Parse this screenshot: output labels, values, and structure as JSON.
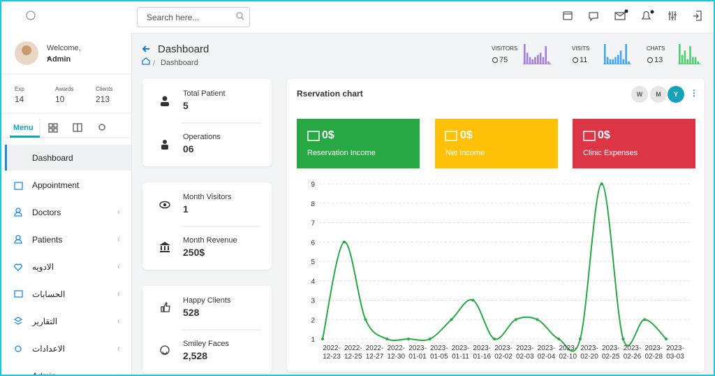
{
  "topbar": {
    "search_placeholder": "Search here..."
  },
  "profile": {
    "welcome": "Welcome,",
    "name": "Admin",
    "stats": [
      {
        "label": "Exp",
        "value": "14"
      },
      {
        "label": "Awards",
        "value": "10"
      },
      {
        "label": "Clients",
        "value": "213"
      }
    ]
  },
  "tabs": [
    "Menu"
  ],
  "menu": [
    "Dashboard",
    "Appointment",
    "Doctors",
    "Patients",
    "الادويه",
    "الحسابات",
    "التقارير",
    "الاعدادات",
    "Admin"
  ],
  "page": {
    "title": "Dashboard",
    "breadcrumb": "Dashboard"
  },
  "header_stats": [
    {
      "label": "VISITORS",
      "value": "75",
      "color": "#a17fe0",
      "bars": [
        9,
        5,
        3,
        2,
        3,
        4,
        5,
        3,
        8,
        1
      ]
    },
    {
      "label": "VISITS",
      "value": "11",
      "color": "#42a5f5",
      "bars": [
        9,
        3,
        2,
        2,
        3,
        4,
        6,
        2,
        9,
        1
      ]
    },
    {
      "label": "CHATS",
      "value": "13",
      "color": "#4cce6c",
      "bars": [
        9,
        4,
        6,
        2,
        8,
        3,
        3,
        1
      ]
    }
  ],
  "cards": [
    [
      {
        "label": "Total Patient",
        "value": "5"
      },
      {
        "label": "Operations",
        "value": "06"
      }
    ],
    [
      {
        "label": "Month Visitors",
        "value": "1"
      },
      {
        "label": "Month Revenue",
        "value": "250$"
      }
    ],
    [
      {
        "label": "Happy Clients",
        "value": "528"
      },
      {
        "label": "Smiley Faces",
        "value": "2,528"
      }
    ]
  ],
  "reservation": {
    "toggles": [
      "W",
      "M",
      "Y"
    ],
    "boxes": [
      {
        "amount": "0$",
        "label": "Reservation Income",
        "color": "#28a745"
      },
      {
        "amount": "0$",
        "label": "Net Income",
        "color": "#ffc107"
      },
      {
        "amount": "0$",
        "label": "Clinic Expenses",
        "color": "#dc3545"
      }
    ]
  },
  "chart_data": {
    "type": "line",
    "title": "Rservation chart",
    "categories": [
      "2022-12-23",
      "2022-12-25",
      "2022-12-27",
      "2022-12-30",
      "2023-01-01",
      "2023-01-05",
      "2023-01-11",
      "2023-01-16",
      "2023-02-02",
      "2023-02-03",
      "2023-02-04",
      "2023-02-10",
      "2023-02-20",
      "2023-02-25",
      "2023-02-26",
      "2023-02-28",
      "2023-03-03"
    ],
    "values": [
      1,
      6,
      2,
      1,
      1,
      1,
      2,
      3,
      1,
      2,
      2,
      1,
      1,
      9,
      1,
      2,
      1
    ],
    "color": "#28a745",
    "ylim": [
      1,
      9
    ],
    "yticks": [
      1,
      2,
      3,
      4,
      5,
      6,
      7,
      8,
      9
    ],
    "grid": true
  }
}
